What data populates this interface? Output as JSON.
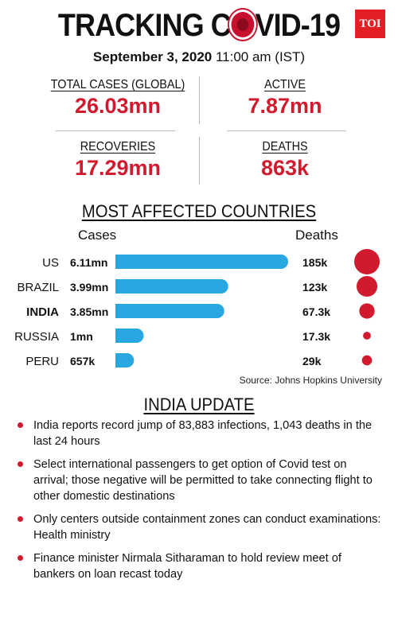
{
  "header": {
    "title_left": "TRACKING C",
    "title_right": "VID-19",
    "brand": "TOI",
    "date_bold": "September 3, 2020",
    "date_rest": " 11:00 am (IST)"
  },
  "stats": [
    {
      "label": "TOTAL CASES (GLOBAL)",
      "value": "26.03mn"
    },
    {
      "label": "ACTIVE",
      "value": "7.87mn"
    },
    {
      "label": "RECOVERIES",
      "value": "17.29mn"
    },
    {
      "label": "DEATHS",
      "value": "863k"
    }
  ],
  "countries_section": {
    "title": "MOST AFFECTED COUNTRIES",
    "cases_header": "Cases",
    "deaths_header": "Deaths",
    "source": "Source: Johns Hopkins University"
  },
  "chart_data": {
    "type": "bar",
    "categories": [
      "US",
      "BRAZIL",
      "INDIA",
      "RUSSIA",
      "PERU"
    ],
    "highlight": "INDIA",
    "series": [
      {
        "name": "Cases",
        "values": [
          6.11,
          3.99,
          3.85,
          1.0,
          0.657
        ],
        "labels": [
          "6.11mn",
          "3.99mn",
          "3.85mn",
          "1mn",
          "657k"
        ],
        "unit": "mn",
        "color": "#29a7e1"
      },
      {
        "name": "Deaths",
        "values": [
          185,
          123,
          67.3,
          17.3,
          29
        ],
        "labels": [
          "185k",
          "123k",
          "67.3k",
          "17.3k",
          "29k"
        ],
        "unit": "k",
        "color": "#d21a2e"
      }
    ]
  },
  "india_update": {
    "title": "INDIA UPDATE",
    "items": [
      "India reports record jump of 83,883 infections, 1,043 deaths in the last 24 hours",
      "Select international passengers to get option of Covid test on arrival; those negative will be permitted to take connecting flight to other domestic destinations",
      "Only centers outside containment zones can conduct examinations: Health ministry",
      "Finance minister Nirmala Sitharaman to hold review meet of bankers on loan recast today"
    ]
  }
}
